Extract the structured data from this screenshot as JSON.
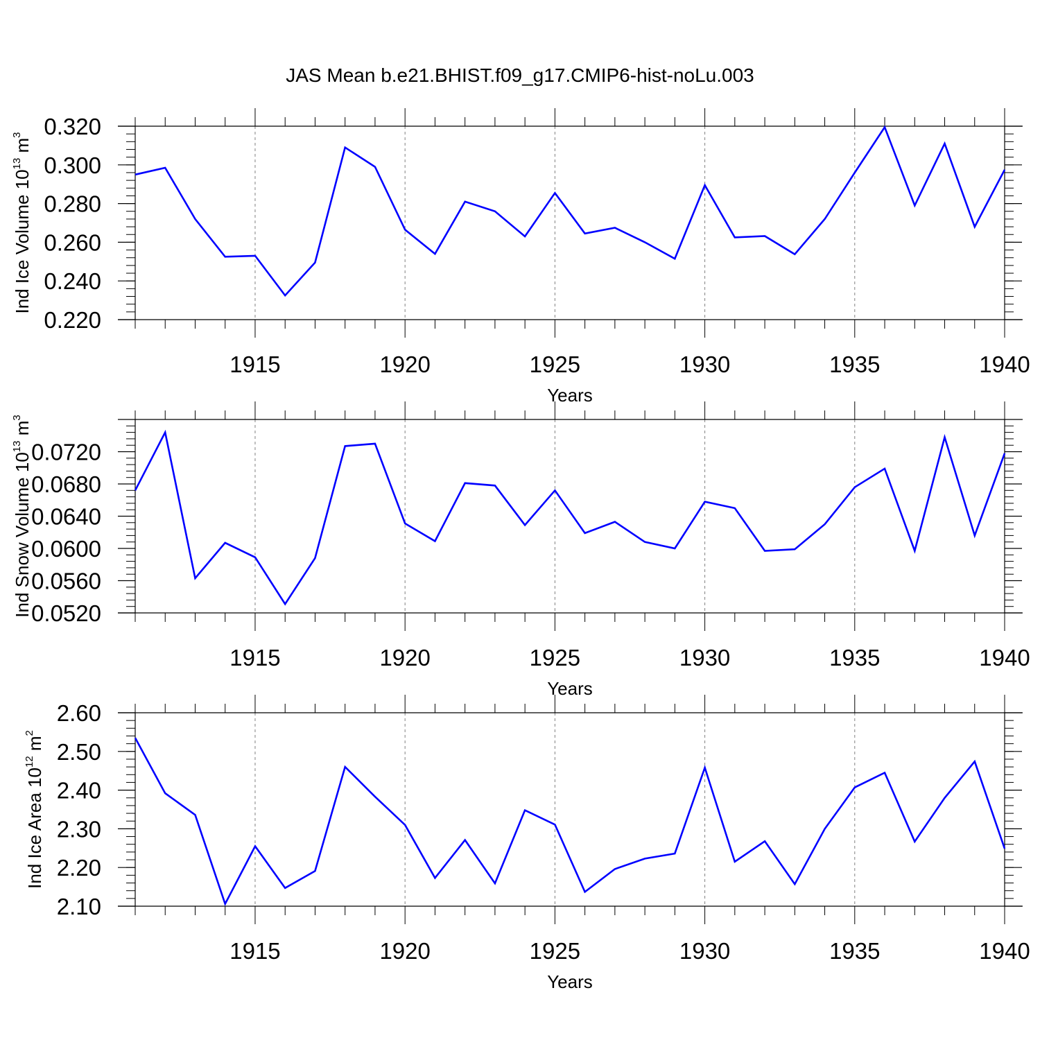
{
  "title": "JAS Mean b.e21.BHIST.f09_g17.CMIP6-hist-noLu.003",
  "colors": {
    "line": "#0000ff",
    "axis": "#000000",
    "grid": "#808080"
  },
  "chart_data": [
    {
      "type": "line",
      "id": "ice-volume",
      "ylabel_main": "Ind Ice Volume 10",
      "ylabel_exp": "13",
      "ylabel_unit": " m",
      "ylabel_unit_exp": "3",
      "xlabel": "Years",
      "xlim": [
        1911,
        1940
      ],
      "ylim": [
        0.22,
        0.32
      ],
      "yticks": [
        0.22,
        0.24,
        0.26,
        0.28,
        0.3,
        0.32
      ],
      "ytick_labels": [
        "0.220",
        "0.240",
        "0.260",
        "0.280",
        "0.300",
        "0.320"
      ],
      "yminor_step": 0.004,
      "xticks": [
        1915,
        1920,
        1925,
        1930,
        1935,
        1940
      ],
      "xtick_labels": [
        "1915",
        "1920",
        "1925",
        "1930",
        "1935",
        "1940"
      ],
      "x": [
        1911,
        1912,
        1913,
        1914,
        1915,
        1916,
        1917,
        1918,
        1919,
        1920,
        1921,
        1922,
        1923,
        1924,
        1925,
        1926,
        1927,
        1928,
        1929,
        1930,
        1931,
        1932,
        1933,
        1934,
        1935,
        1936,
        1937,
        1938,
        1939,
        1940
      ],
      "values": [
        0.295,
        0.2985,
        0.272,
        0.2525,
        0.253,
        0.2325,
        0.2495,
        0.309,
        0.299,
        0.2665,
        0.254,
        0.281,
        0.276,
        0.263,
        0.2855,
        0.2645,
        0.2675,
        0.26,
        0.2515,
        0.2895,
        0.2625,
        0.2632,
        0.2538,
        0.272,
        0.296,
        0.3195,
        0.279,
        0.311,
        0.268,
        0.2975
      ]
    },
    {
      "type": "line",
      "id": "snow-volume",
      "ylabel_main": "Ind Snow Volume 10",
      "ylabel_exp": "13",
      "ylabel_unit": " m",
      "ylabel_unit_exp": "3",
      "xlabel": "Years",
      "xlim": [
        1911,
        1940
      ],
      "ylim": [
        0.052,
        0.076
      ],
      "yticks": [
        0.052,
        0.056,
        0.06,
        0.064,
        0.068,
        0.072
      ],
      "ytick_labels": [
        "0.0520",
        "0.0560",
        "0.0600",
        "0.0640",
        "0.0680",
        "0.0720"
      ],
      "yminor_step": 0.0008,
      "xticks": [
        1915,
        1920,
        1925,
        1930,
        1935,
        1940
      ],
      "xtick_labels": [
        "1915",
        "1920",
        "1925",
        "1930",
        "1935",
        "1940"
      ],
      "x": [
        1911,
        1912,
        1913,
        1914,
        1915,
        1916,
        1917,
        1918,
        1919,
        1920,
        1921,
        1922,
        1923,
        1924,
        1925,
        1926,
        1927,
        1928,
        1929,
        1930,
        1931,
        1932,
        1933,
        1934,
        1935,
        1936,
        1937,
        1938,
        1939,
        1940
      ],
      "values": [
        0.0672,
        0.0744,
        0.0563,
        0.0607,
        0.0589,
        0.0531,
        0.0588,
        0.0727,
        0.073,
        0.0631,
        0.0609,
        0.0681,
        0.0678,
        0.0629,
        0.0672,
        0.0619,
        0.0633,
        0.0608,
        0.06,
        0.0658,
        0.065,
        0.0597,
        0.0599,
        0.063,
        0.0676,
        0.0699,
        0.0597,
        0.0738,
        0.0616,
        0.0718
      ]
    },
    {
      "type": "line",
      "id": "ice-area",
      "ylabel_main": "Ind Ice Area 10",
      "ylabel_exp": "12",
      "ylabel_unit": " m",
      "ylabel_unit_exp": "2",
      "xlabel": "Years",
      "xlim": [
        1911,
        1940
      ],
      "ylim": [
        2.1,
        2.6
      ],
      "yticks": [
        2.1,
        2.2,
        2.3,
        2.4,
        2.5,
        2.6
      ],
      "ytick_labels": [
        "2.10",
        "2.20",
        "2.30",
        "2.40",
        "2.50",
        "2.60"
      ],
      "yminor_step": 0.02,
      "xticks": [
        1915,
        1920,
        1925,
        1930,
        1935,
        1940
      ],
      "xtick_labels": [
        "1915",
        "1920",
        "1925",
        "1930",
        "1935",
        "1940"
      ],
      "x": [
        1911,
        1912,
        1913,
        1914,
        1915,
        1916,
        1917,
        1918,
        1919,
        1920,
        1921,
        1922,
        1923,
        1924,
        1925,
        1926,
        1927,
        1928,
        1929,
        1930,
        1931,
        1932,
        1933,
        1934,
        1935,
        1936,
        1937,
        1938,
        1939,
        1940
      ],
      "values": [
        2.535,
        2.392,
        2.336,
        2.106,
        2.255,
        2.147,
        2.191,
        2.46,
        2.383,
        2.31,
        2.173,
        2.271,
        2.159,
        2.348,
        2.311,
        2.137,
        2.196,
        2.223,
        2.236,
        2.458,
        2.215,
        2.268,
        2.157,
        2.3,
        2.407,
        2.445,
        2.267,
        2.38,
        2.474,
        2.249
      ]
    }
  ]
}
